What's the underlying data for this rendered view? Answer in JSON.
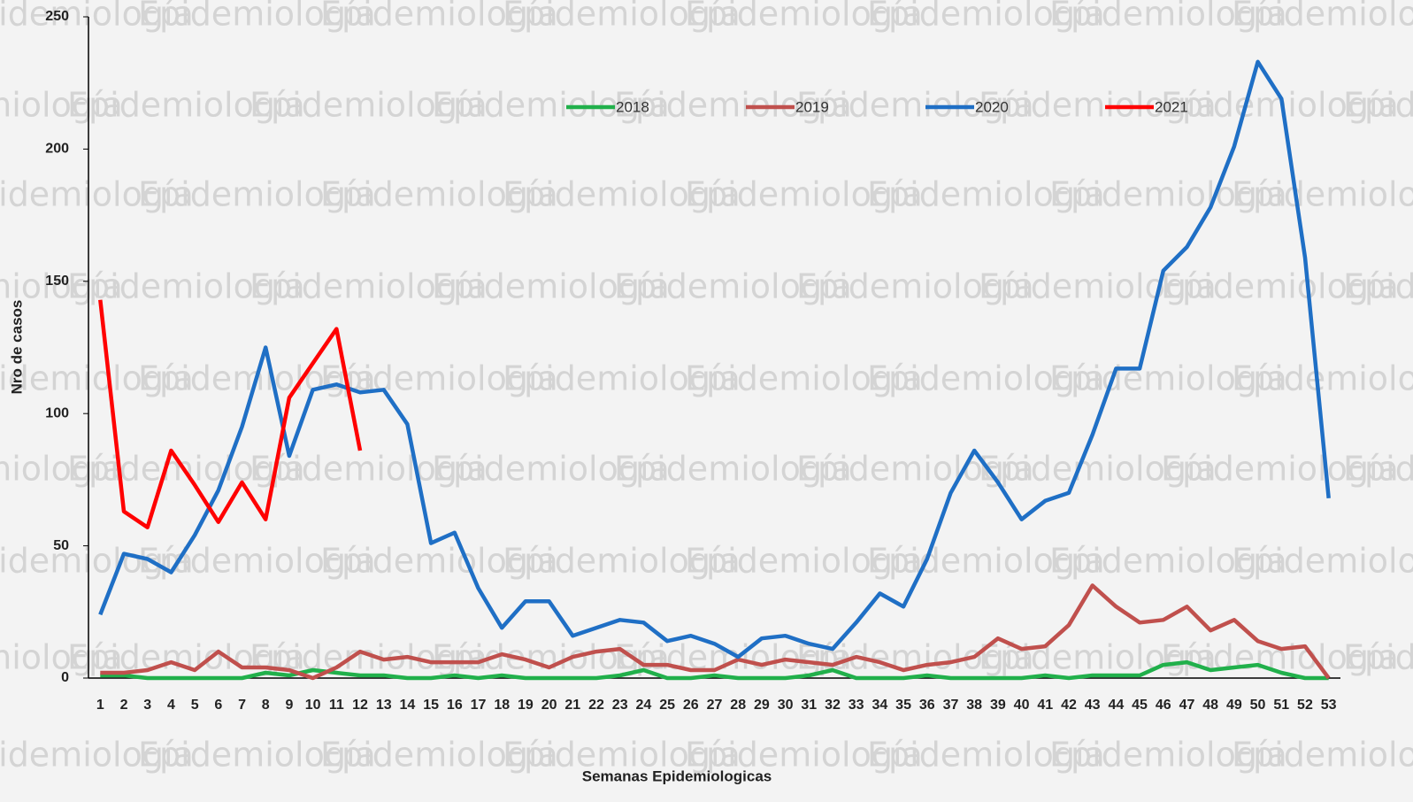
{
  "chart_data": {
    "type": "line",
    "watermark": "Epidemiología",
    "xlabel": "Semanas Epidemiologicas",
    "ylabel": "Nro de casos",
    "categories": [
      "1",
      "2",
      "3",
      "4",
      "5",
      "6",
      "7",
      "8",
      "9",
      "10",
      "11",
      "12",
      "13",
      "14",
      "15",
      "16",
      "17",
      "18",
      "19",
      "20",
      "21",
      "22",
      "23",
      "24",
      "25",
      "26",
      "27",
      "28",
      "29",
      "30",
      "31",
      "32",
      "33",
      "34",
      "35",
      "36",
      "37",
      "38",
      "39",
      "40",
      "41",
      "42",
      "43",
      "44",
      "45",
      "46",
      "47",
      "48",
      "49",
      "50",
      "51",
      "52",
      "53"
    ],
    "ylim": [
      0,
      250
    ],
    "yticks": [
      0,
      50,
      100,
      150,
      200,
      250
    ],
    "grid": false,
    "legend": "top",
    "series": [
      {
        "name": "2018",
        "color": "#21b04b",
        "values": [
          1,
          1,
          0,
          0,
          0,
          0,
          0,
          2,
          1,
          3,
          2,
          1,
          1,
          0,
          0,
          1,
          0,
          1,
          0,
          0,
          0,
          0,
          1,
          3,
          0,
          0,
          1,
          0,
          0,
          0,
          1,
          3,
          0,
          0,
          0,
          1,
          0,
          0,
          0,
          0,
          1,
          0,
          1,
          1,
          1,
          5,
          6,
          3,
          4,
          5,
          2,
          0,
          0
        ]
      },
      {
        "name": "2019",
        "color": "#c0504d",
        "values": [
          2,
          2,
          3,
          6,
          3,
          10,
          4,
          4,
          3,
          0,
          4,
          10,
          7,
          8,
          6,
          6,
          6,
          9,
          7,
          4,
          8,
          10,
          11,
          5,
          5,
          3,
          3,
          7,
          5,
          7,
          6,
          5,
          8,
          6,
          3,
          5,
          6,
          8,
          15,
          11,
          12,
          20,
          35,
          27,
          21,
          22,
          27,
          18,
          22,
          14,
          11,
          12,
          0
        ]
      },
      {
        "name": "2020",
        "color": "#1f6fc5",
        "values": [
          24,
          47,
          45,
          40,
          54,
          71,
          95,
          125,
          84,
          109,
          111,
          108,
          109,
          96,
          51,
          55,
          34,
          19,
          29,
          29,
          16,
          19,
          22,
          21,
          14,
          16,
          13,
          8,
          15,
          16,
          13,
          11,
          21,
          32,
          27,
          45,
          70,
          86,
          74,
          60,
          67,
          70,
          92,
          117,
          117,
          154,
          163,
          178,
          201,
          233,
          219,
          159,
          68
        ]
      },
      {
        "name": "2021",
        "color": "#ff0000",
        "values": [
          143,
          63,
          57,
          86,
          73,
          59,
          74,
          60,
          106,
          119,
          132,
          86,
          null,
          null,
          null,
          null,
          null,
          null,
          null,
          null,
          null,
          null,
          null,
          null,
          null,
          null,
          null,
          null,
          null,
          null,
          null,
          null,
          null,
          null,
          null,
          null,
          null,
          null,
          null,
          null,
          null,
          null,
          null,
          null,
          null,
          null,
          null,
          null,
          null,
          null,
          null,
          null,
          null
        ]
      }
    ]
  }
}
